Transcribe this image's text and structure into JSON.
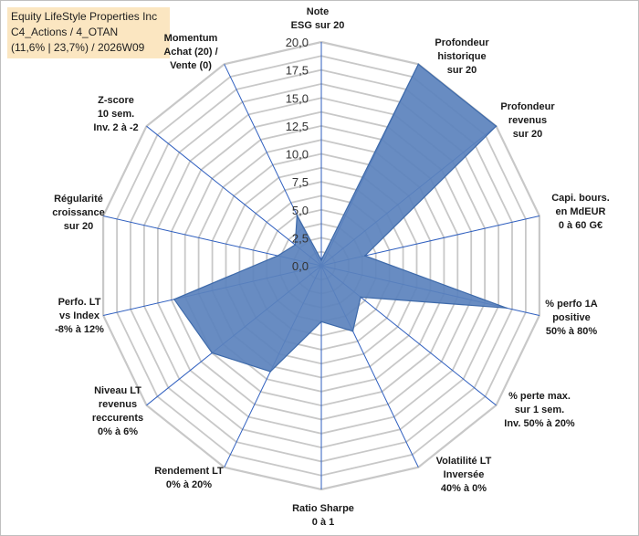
{
  "header": {
    "line1": "Equity LifeStyle Properties Inc",
    "line2": "C4_Actions / 4_OTAN",
    "line3": "(11,6% | 23,7%) / 2026W09"
  },
  "colors": {
    "fill": "#5b82bd",
    "stroke": "#3e6aaa",
    "grid": "#c8c8c8",
    "spoke": "#2f5fbf",
    "title_bg": "#fbe6c1"
  },
  "chart_data": {
    "type": "radar",
    "title": "Equity LifeStyle Properties Inc",
    "rlim": [
      0,
      20
    ],
    "grid": true,
    "ticks": [
      "0,0",
      "2,5",
      "5,0",
      "7,5",
      "10,0",
      "12,5",
      "15,0",
      "17,5",
      "20,0"
    ],
    "axes": [
      {
        "label": [
          "Note",
          "ESG sur 20"
        ],
        "value": 0.5
      },
      {
        "label": [
          "Profondeur",
          "historique",
          "sur 20"
        ],
        "value": 20.0
      },
      {
        "label": [
          "Profondeur",
          "revenus",
          "sur 20"
        ],
        "value": 20.0
      },
      {
        "label": [
          "Capi. bours.",
          "en MdEUR",
          "0 à 60 G€"
        ],
        "value": 4.0
      },
      {
        "label": [
          "% perfo 1A",
          "positive",
          "50% à 80%"
        ],
        "value": 17.0
      },
      {
        "label": [
          "% perte max.",
          "sur 1 sem.",
          "Inv. 50% à 20%"
        ],
        "value": 4.5
      },
      {
        "label": [
          "Volatilité LT",
          "Inversée",
          "40% à 0%"
        ],
        "value": 6.5
      },
      {
        "label": [
          "Ratio Sharpe",
          "0 à 1"
        ],
        "value": 5.0
      },
      {
        "label": [
          "Rendement LT",
          "0% à 20%"
        ],
        "value": 10.5
      },
      {
        "label": [
          "Niveau LT",
          "revenus",
          "reccurents",
          "0% à 6%"
        ],
        "value": 12.5
      },
      {
        "label": [
          "Perfo. LT",
          "vs Index",
          "-8% à 12%"
        ],
        "value": 13.5
      },
      {
        "label": [
          "Régularité",
          "croissance",
          "sur 20"
        ],
        "value": 4.0
      },
      {
        "label": [
          "Z-score",
          "10 sem.",
          "Inv. 2 à -2"
        ],
        "value": 3.0
      },
      {
        "label": [
          "Momentum",
          "Achat (20) /",
          "Vente (0)"
        ],
        "value": 5.0
      }
    ]
  }
}
